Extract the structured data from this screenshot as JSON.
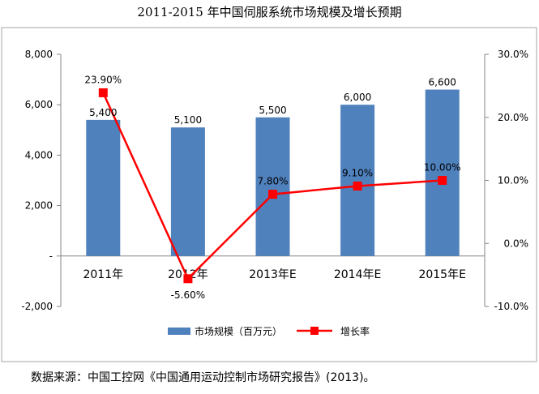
{
  "title": "2011-2015 年中国伺服系统市场规模及增长预期",
  "source": "数据来源：中国工控网《中国通用运动控制市场研究报告》(2013)。",
  "chart_data": {
    "type": "bar",
    "categories": [
      "2011年",
      "2012年",
      "2013年E",
      "2014年E",
      "2015年E"
    ],
    "series": [
      {
        "name": "市场规模（百万元）",
        "type": "bar",
        "axis": "left",
        "color": "#4f81bd",
        "values": [
          5400,
          5100,
          5500,
          6000,
          6600
        ],
        "labels": [
          "5,400",
          "5,100",
          "5,500",
          "6,000",
          "6,600"
        ]
      },
      {
        "name": "增长率",
        "type": "line",
        "axis": "right",
        "color": "#ff0000",
        "values": [
          23.9,
          -5.6,
          7.8,
          9.1,
          10.0
        ],
        "labels": [
          "23.90%",
          "-5.60%",
          "7.80%",
          "9.10%",
          "10.00%"
        ]
      }
    ],
    "left_axis": {
      "ylim": [
        -2000,
        8000
      ],
      "ticks": [
        -2000,
        0,
        2000,
        4000,
        6000,
        8000
      ],
      "tick_labels": [
        "-2,000",
        "-",
        "2,000",
        "4,000",
        "6,000",
        "8,000"
      ]
    },
    "right_axis": {
      "ylim": [
        -10,
        30
      ],
      "ticks": [
        -10,
        0,
        10,
        20,
        30
      ],
      "tick_labels": [
        "-10.0%",
        "0.0%",
        "10.0%",
        "20.0%",
        "30.0%"
      ]
    },
    "grid": false,
    "legend_position": "bottom"
  }
}
